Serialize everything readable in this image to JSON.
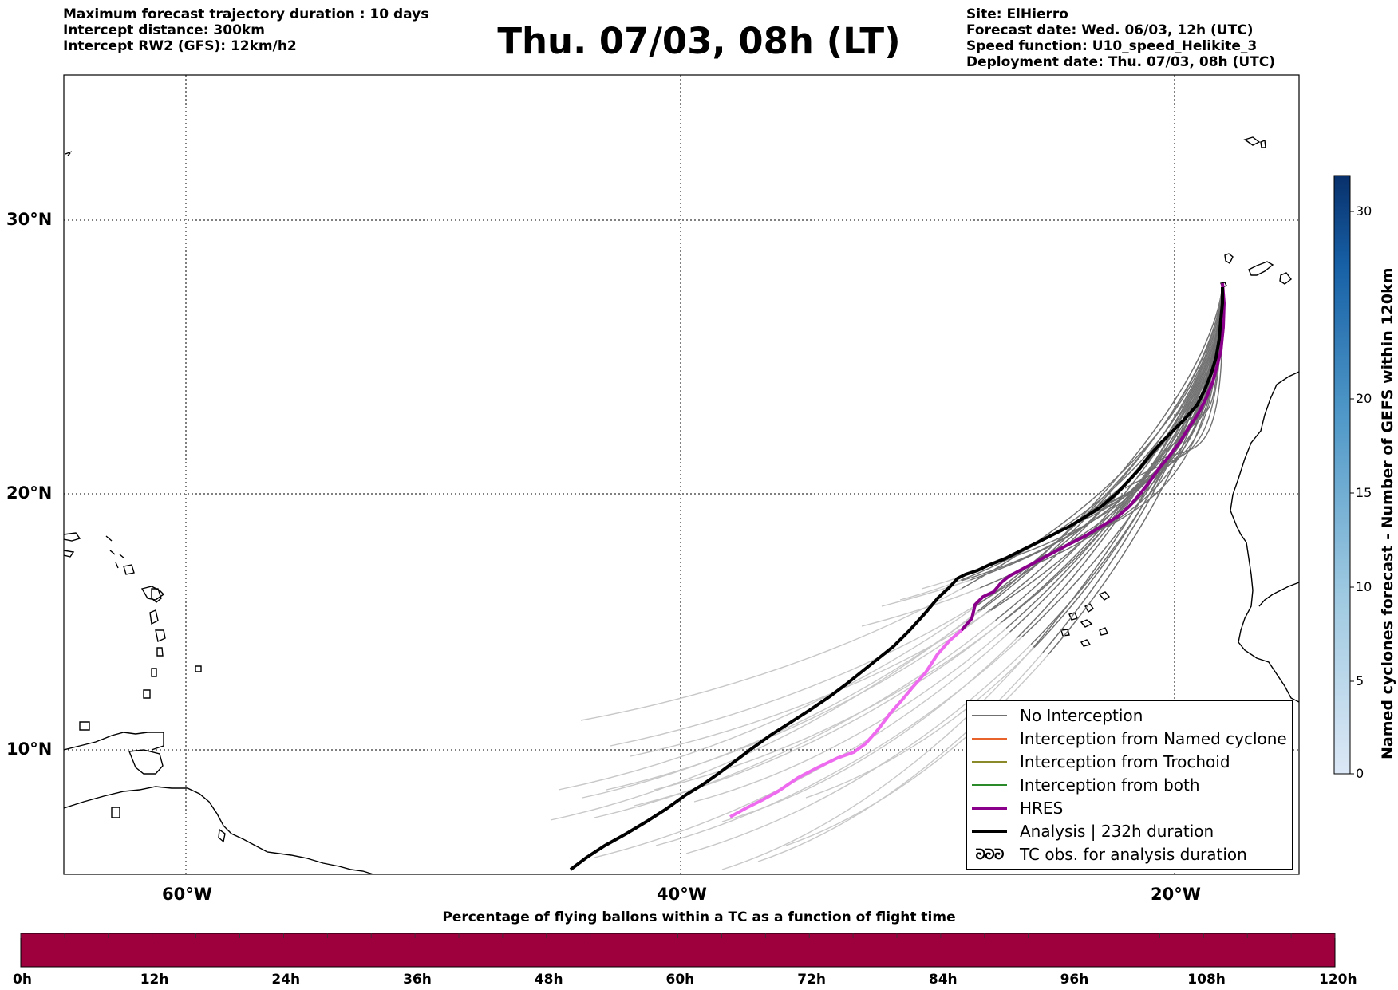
{
  "header_left": {
    "line1": "Maximum forecast trajectory duration : 10 days",
    "line2": "Intercept distance: 300km",
    "line3": "Intercept RW2 (GFS):  12km/h2"
  },
  "title": "Thu. 07/03, 08h (LT)",
  "header_right": {
    "site": "Site: ElHierro",
    "forecast_date": "Forecast date: Wed. 06/03, 12h (UTC)",
    "speed_function": "Speed function: U10_speed_Helikite_3",
    "deployment_date": "Deployment date: Thu. 07/03, 08h (UTC)"
  },
  "map": {
    "lat_labels": [
      "30°N",
      "20°N",
      "10°N"
    ],
    "lon_labels": [
      "60°W",
      "40°W",
      "20°W"
    ],
    "colors": {
      "no_interception": "#707070",
      "faded_trajectory": "#c8c8c8",
      "named_cyclone": "#e8622c",
      "trochoid": "#8a8a2a",
      "both": "#2a8a2a",
      "hres": "#8b008b",
      "hres_light": "#ee6aee",
      "analysis": "#000000"
    }
  },
  "legend": {
    "items": [
      {
        "label": "No Interception"
      },
      {
        "label": "Interception from Named cyclone"
      },
      {
        "label": "Interception from Trochoid"
      },
      {
        "label": "Interception from both"
      },
      {
        "label": "HRES"
      },
      {
        "label": "Analysis | 232h duration"
      },
      {
        "label": "TC obs. for analysis duration"
      }
    ]
  },
  "colorbar": {
    "label": "Named cyclones forecast - Number of GEFS within 120km",
    "ticks": [
      "30",
      "20",
      "15",
      "10",
      "5",
      "0"
    ]
  },
  "percentage_bar": {
    "title": "Percentage of flying ballons within a TC as a function of flight time",
    "color": "#9e003d",
    "ticks": [
      "0h",
      "12h",
      "24h",
      "36h",
      "48h",
      "60h",
      "72h",
      "84h",
      "96h",
      "108h",
      "120h"
    ]
  }
}
